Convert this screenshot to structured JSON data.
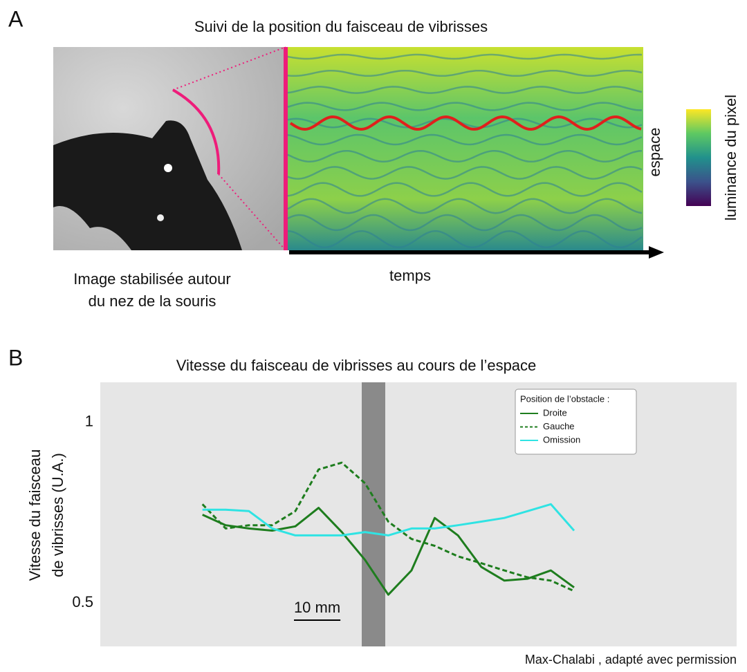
{
  "panel_a": {
    "label": "A",
    "title": "Suivi de la position du faisceau de vibrisses",
    "caption_lines": [
      "Image stabilisée autour",
      "du nez de la souris"
    ],
    "x_label": "temps",
    "y_label": "espace",
    "colorbar_label": "luminance du pixel"
  },
  "chart_data": {
    "type": "line",
    "panel_label": "B",
    "title": "Vitesse du faisceau de vibrisses au cours de l’espace",
    "y_label_lines": [
      "Vitesse du faisceau",
      "de vibrisses (U.A.)"
    ],
    "x": [
      0,
      5,
      10,
      15,
      20,
      25,
      30,
      35,
      40,
      45,
      50,
      55,
      60,
      65,
      70,
      75,
      80
    ],
    "xlim": [
      -22,
      115
    ],
    "ylim": [
      0.38,
      1.11
    ],
    "yticks": [
      0.5,
      1
    ],
    "legend_title": "Position de l’obstacle :",
    "legend_corner": "top-right",
    "series": [
      {
        "name": "Droite",
        "color": "#1e7d1e",
        "dash": false,
        "values": [
          0.744,
          0.715,
          0.706,
          0.7,
          0.712,
          0.763,
          0.696,
          0.619,
          0.523,
          0.59,
          0.735,
          0.687,
          0.6,
          0.562,
          0.567,
          0.59,
          0.543
        ]
      },
      {
        "name": "Gauche",
        "color": "#1e7d1e",
        "dash": true,
        "values": [
          0.773,
          0.706,
          0.715,
          0.715,
          0.754,
          0.869,
          0.888,
          0.831,
          0.725,
          0.677,
          0.658,
          0.629,
          0.61,
          0.59,
          0.571,
          0.562,
          0.533
        ]
      },
      {
        "name": "Omission",
        "color": "#2fe3e3",
        "dash": false,
        "values": [
          0.758,
          0.758,
          0.754,
          0.706,
          0.687,
          0.687,
          0.687,
          0.696,
          0.687,
          0.706,
          0.706,
          0.715,
          0.725,
          0.735,
          0.754,
          0.773,
          0.7
        ]
      }
    ],
    "scale_bar": {
      "value": 10,
      "label": "10 mm"
    }
  },
  "credit": "Max-Chalabi , adapté avec permission"
}
